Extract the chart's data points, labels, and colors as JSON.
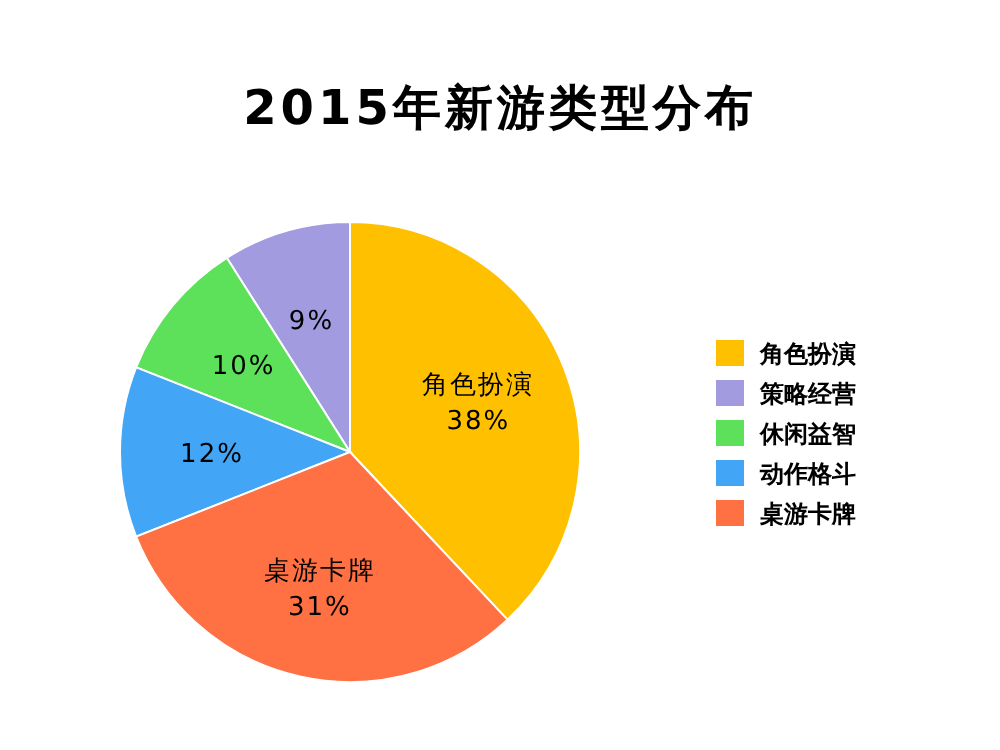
{
  "chart_data": {
    "type": "pie",
    "title": "2015年新游类型分布",
    "categories": [
      "角色扮演",
      "策略经营",
      "休闲益智",
      "动作格斗",
      "桌游卡牌"
    ],
    "values": [
      38,
      9,
      10,
      12,
      31
    ],
    "colors": [
      "#ffc000",
      "#a29be0",
      "#5de05a",
      "#42a5f5",
      "#ff7043"
    ],
    "value_labels": [
      "角色扮演\n38%",
      "9%",
      "10%",
      "12%",
      "桌游卡牌\n31%"
    ],
    "legend": "right"
  }
}
